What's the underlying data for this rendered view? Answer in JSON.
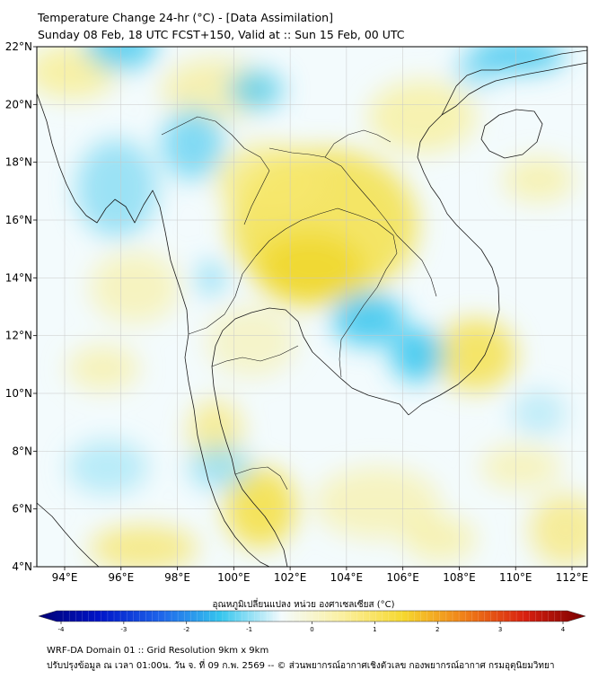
{
  "title": {
    "line1": "Temperature Change 24-hr (°C) - [Data Assimilation]",
    "line2": "Sunday 08 Feb, 18 UTC FCST+150, Valid at :: Sun 15 Feb, 00 UTC"
  },
  "map": {
    "lat_ticks": [
      "22°N",
      "20°N",
      "18°N",
      "16°N",
      "14°N",
      "12°N",
      "10°N",
      "8°N",
      "6°N",
      "4°N"
    ],
    "lon_ticks": [
      "94°E",
      "96°E",
      "98°E",
      "100°E",
      "102°E",
      "104°E",
      "106°E",
      "108°E",
      "110°E",
      "112°E"
    ],
    "grid": true,
    "field": "24-hr temperature change",
    "colors": {
      "cool": "#36c6ee",
      "neutral": "#f2fbfd",
      "warm": "#f6e236",
      "coast": "#1a1a1a"
    }
  },
  "colorbar": {
    "label": "อุณหภูมิเปลี่ยนแปลง หน่วย องศาเซลเซียส (°C)",
    "ticks": [
      "-4",
      "-3",
      "-2",
      "-1",
      "0",
      "1",
      "2",
      "3",
      "4"
    ],
    "stops": [
      "#000075",
      "#0015c8",
      "#1e64ea",
      "#36c6ee",
      "#f4fbfd",
      "#fbf0a0",
      "#f6d82e",
      "#f08018",
      "#d82010",
      "#7a0000"
    ]
  },
  "footer": {
    "line1": "WRF-DA Domain 01 :: Grid Resolution 9km x 9km",
    "line2": "ปรับปรุงข้อมูล ณ เวลา 01:00น. วัน จ. ที่ 09 ก.พ. 2569 -- © ส่วนพยากรณ์อากาศเชิงตัวเลข กองพยากรณ์อากาศ กรมอุตุนิยมวิทยา"
  }
}
